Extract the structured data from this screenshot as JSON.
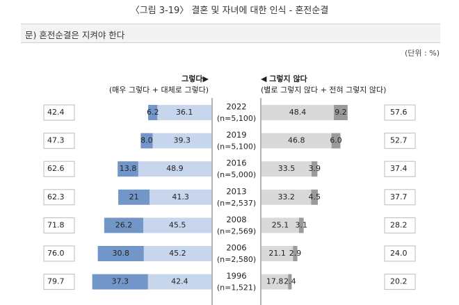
{
  "figure_title": "〈그림 3-19〉 결혼 및 자녀에 대한 인식 - 혼전순결",
  "question": "문) 혼전순결은 지켜야 한다",
  "unit": "(단위 : %)",
  "legend_left_title": "그렇다▶",
  "legend_left_sub": "(매우 그렇다 + 대체로 그렇다)",
  "legend_right_title": "◀ 그렇지 않다",
  "legend_right_sub": "(별로 그렇지 않다 + 전혀 그렇지 않다)",
  "colors": {
    "strongly_agree": "#7396c9",
    "somewhat_agree": "#c7d6ec",
    "somewhat_disagree": "#d9d9d9",
    "strongly_disagree": "#9a9a9a",
    "divider": "#9a9a9a"
  },
  "chart_data": {
    "type": "bar",
    "orientation": "horizontal-diverging",
    "categories": [
      "2022",
      "2019",
      "2016",
      "2013",
      "2008",
      "2006",
      "1996"
    ],
    "sample_sizes": [
      "(n=5,100)",
      "(n=5,100)",
      "(n=5,000)",
      "(n=2,537)",
      "(n=2,569)",
      "(n=2,580)",
      "(n=1,521)"
    ],
    "series": [
      {
        "name": "매우 그렇다",
        "values": [
          6.2,
          8.0,
          13.8,
          21,
          26.2,
          30.8,
          37.3
        ],
        "labels": [
          "6.2",
          "8.0",
          "13.8",
          "21",
          "26.2",
          "30.8",
          "37.3"
        ]
      },
      {
        "name": "대체로 그렇다",
        "values": [
          36.1,
          39.3,
          48.9,
          41.3,
          45.5,
          45.2,
          42.4
        ],
        "labels": [
          "36.1",
          "39.3",
          "48.9",
          "41.3",
          "45.5",
          "45.2",
          "42.4"
        ]
      },
      {
        "name": "별로 그렇지 않다",
        "values": [
          48.4,
          46.8,
          33.5,
          33.2,
          25.1,
          21.1,
          17.8
        ],
        "labels": [
          "48.4",
          "46.8",
          "33.5",
          "33.2",
          "25.1",
          "21.1",
          "17.8"
        ]
      },
      {
        "name": "전혀 그렇지 않다",
        "values": [
          9.2,
          6.0,
          3.9,
          4.5,
          3.1,
          2.9,
          2.4
        ],
        "labels": [
          "9.2",
          "6.0",
          "3.9",
          "4.5",
          "3.1",
          "2.9",
          "2.4"
        ]
      }
    ],
    "agree_totals": [
      "42.4",
      "47.3",
      "62.6",
      "62.3",
      "71.8",
      "76.0",
      "79.7"
    ],
    "disagree_totals": [
      "57.6",
      "52.7",
      "37.4",
      "37.7",
      "28.2",
      "24.0",
      "20.2"
    ]
  }
}
